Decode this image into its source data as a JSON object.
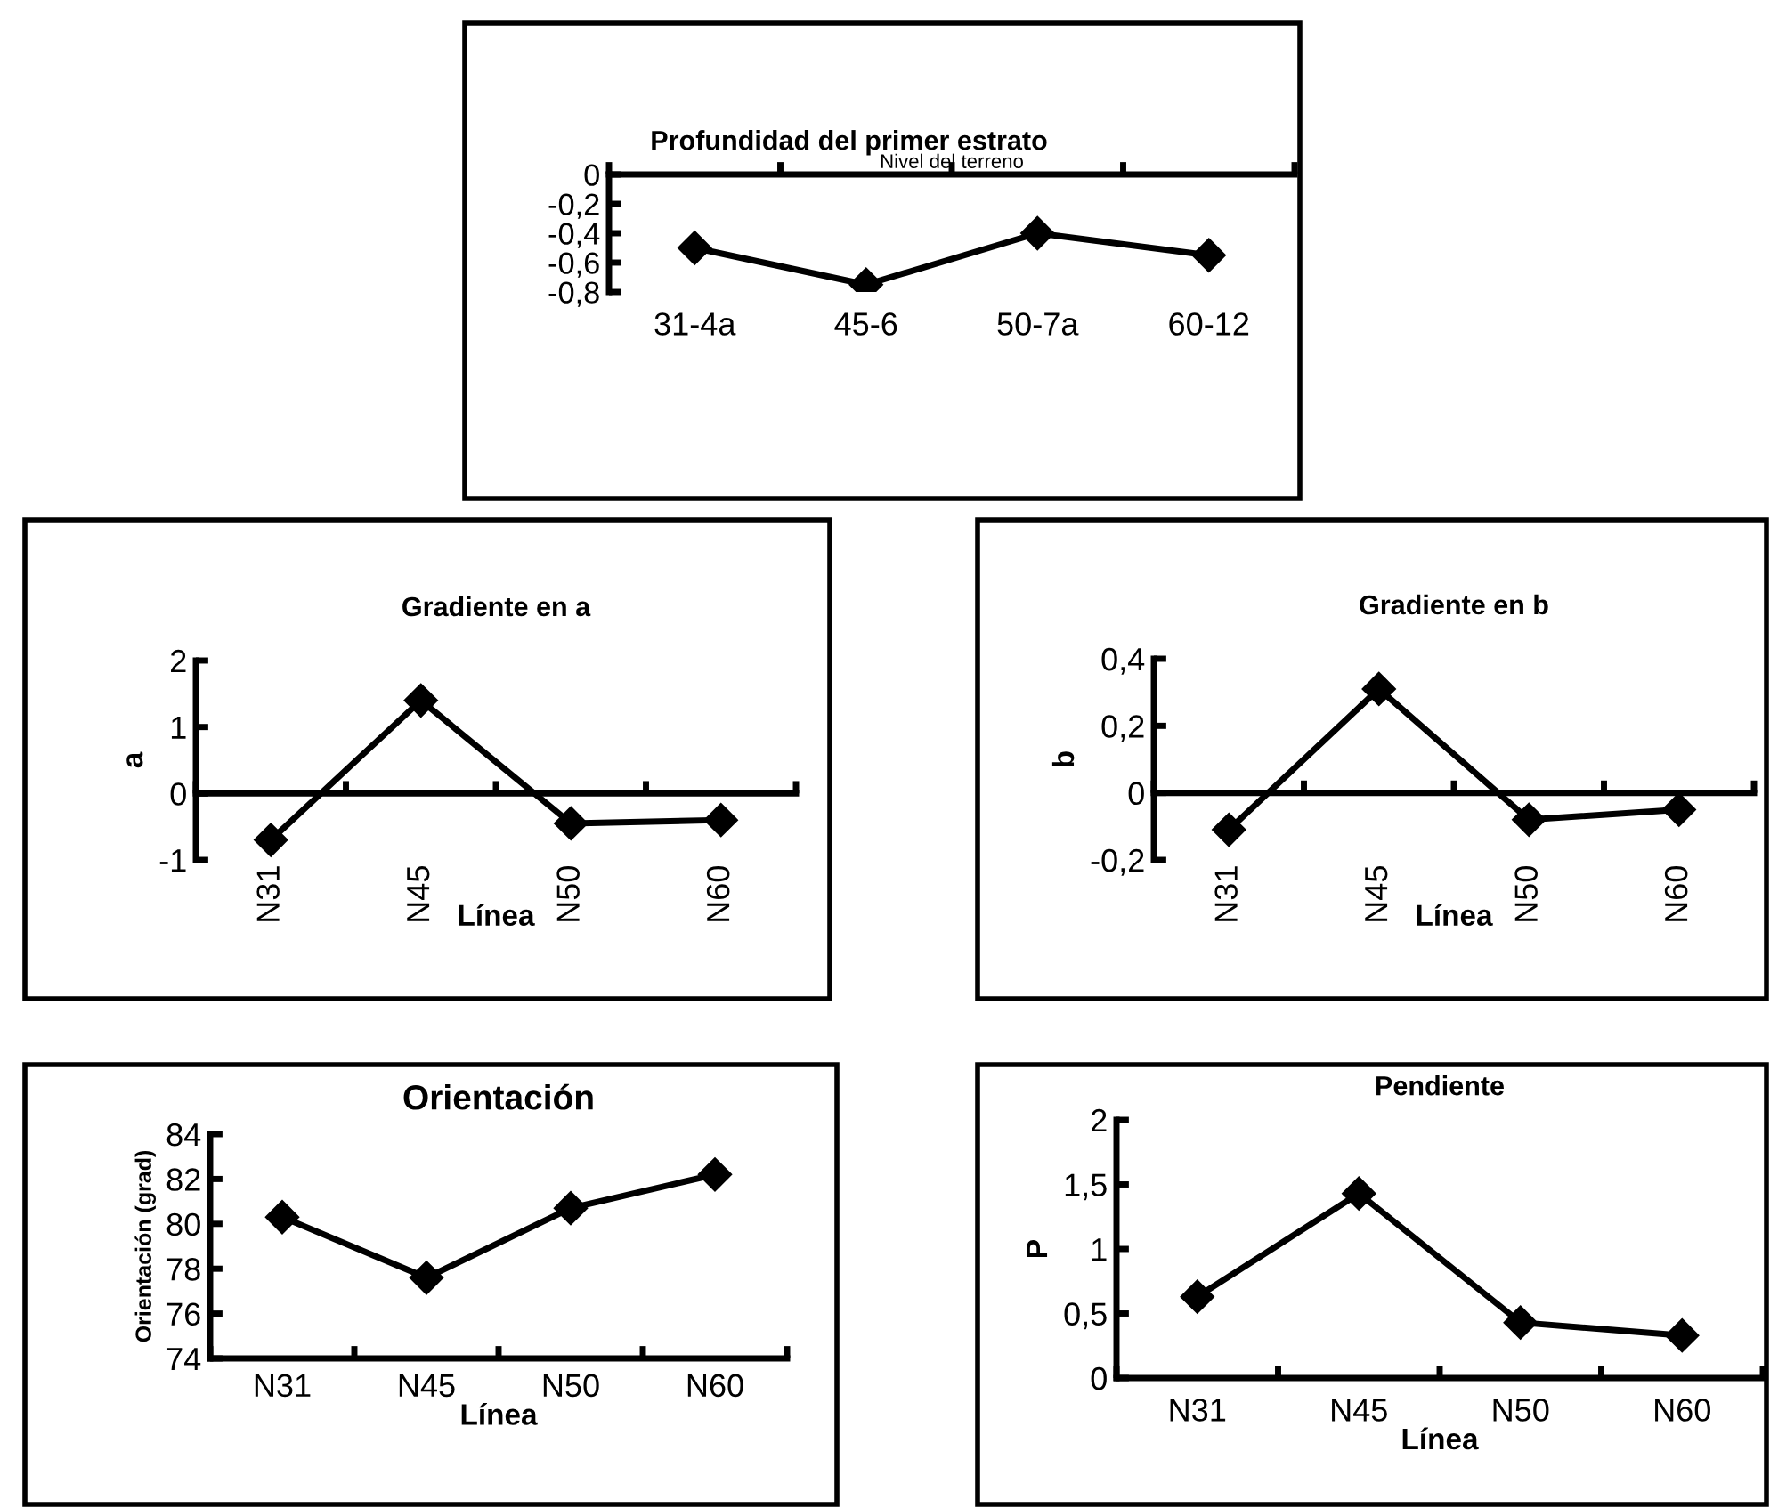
{
  "chart_data": [
    {
      "type": "line",
      "title": "Profundidad del primer estrato",
      "annotations": [
        "Nivel del terreno"
      ],
      "categories": [
        "31-4a",
        "45-6",
        "50-7a",
        "60-12"
      ],
      "series": [
        {
          "color": "#000000",
          "values": [
            -0.5,
            -0.75,
            -0.4,
            -0.55
          ]
        }
      ],
      "ylim": [
        -0.8,
        0
      ],
      "yticks": [
        {
          "value": -0.8,
          "label": "-0,8"
        },
        {
          "value": -0.6,
          "label": "-0,6"
        },
        {
          "value": -0.4,
          "label": "-0,4"
        },
        {
          "value": -0.2,
          "label": "-0,2"
        },
        0
      ],
      "marker": "diamond",
      "line_style": "solid",
      "grid": false,
      "legend": false
    },
    {
      "type": "line",
      "title": "Gradiente en a",
      "xlabel": "Línea",
      "ylabel": "a",
      "categories": [
        "N31",
        "N45",
        "N50",
        "N60"
      ],
      "series": [
        {
          "color": "#000000",
          "values": [
            -0.7,
            1.4,
            -0.45,
            -0.4
          ]
        }
      ],
      "ylim": [
        -1,
        2
      ],
      "yticks": [
        -1,
        0,
        1,
        2
      ],
      "marker": "diamond",
      "line_style": "solid",
      "grid": false,
      "legend": false
    },
    {
      "type": "line",
      "title": "Gradiente en b",
      "xlabel": "Línea",
      "ylabel": "b",
      "categories": [
        "N31",
        "N45",
        "N50",
        "N60"
      ],
      "series": [
        {
          "color": "#000000",
          "values": [
            -0.11,
            0.31,
            -0.08,
            -0.05
          ]
        }
      ],
      "ylim": [
        -0.2,
        0.4
      ],
      "yticks": [
        {
          "value": -0.2,
          "label": "-0,2"
        },
        0,
        {
          "value": 0.2,
          "label": "0,2"
        },
        {
          "value": 0.4,
          "label": "0,4"
        }
      ],
      "marker": "diamond",
      "line_style": "solid",
      "grid": false,
      "legend": false
    },
    {
      "type": "line",
      "title": "Orientación",
      "xlabel": "Línea",
      "ylabel": "Orientación (grad)",
      "categories": [
        "N31",
        "N45",
        "N50",
        "N60"
      ],
      "series": [
        {
          "color": "#000000",
          "values": [
            80.3,
            77.6,
            80.7,
            82.2
          ]
        }
      ],
      "ylim": [
        74,
        84
      ],
      "yticks": [
        74,
        76,
        78,
        80,
        82,
        84
      ],
      "marker": "diamond",
      "line_style": "solid",
      "grid": false,
      "legend": false
    },
    {
      "type": "line",
      "title": "Pendiente",
      "xlabel": "Línea",
      "ylabel": "P",
      "categories": [
        "N31",
        "N45",
        "N50",
        "N60"
      ],
      "series": [
        {
          "color": "#000000",
          "values": [
            0.63,
            1.43,
            0.43,
            0.33
          ]
        }
      ],
      "ylim": [
        0,
        2
      ],
      "yticks": [
        0,
        {
          "value": 0.5,
          "label": "0,5"
        },
        1,
        {
          "value": 1.5,
          "label": "1,5"
        },
        2
      ],
      "marker": "diamond",
      "line_style": "solid",
      "grid": false,
      "legend": false
    }
  ]
}
